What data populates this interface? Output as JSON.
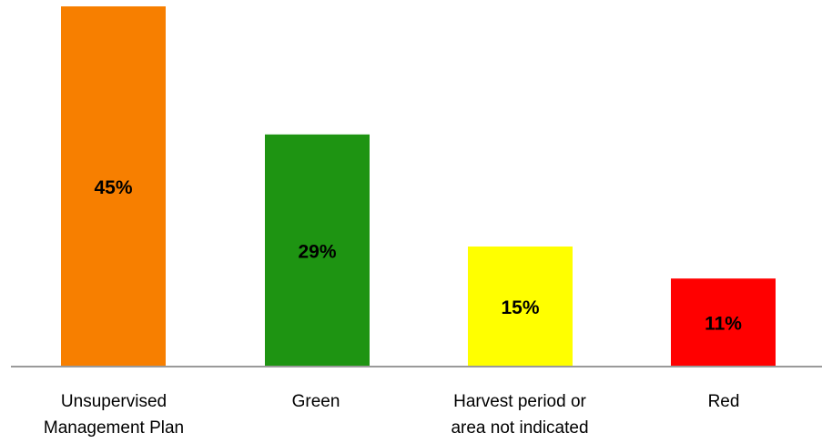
{
  "chart_data": {
    "type": "bar",
    "categories": [
      [
        "Unsupervised",
        "Management Plan"
      ],
      [
        "Green"
      ],
      [
        "Harvest period or",
        "area not indicated"
      ],
      [
        "Red"
      ]
    ],
    "values": [
      45,
      29,
      15,
      11
    ],
    "data_labels": [
      "45%",
      "29%",
      "15%",
      "11%"
    ],
    "colors": [
      "#F77F00",
      "#1E9412",
      "#FFFF00",
      "#FF0000"
    ],
    "ylim": [
      0,
      45
    ],
    "grid": false,
    "legend": "none"
  }
}
